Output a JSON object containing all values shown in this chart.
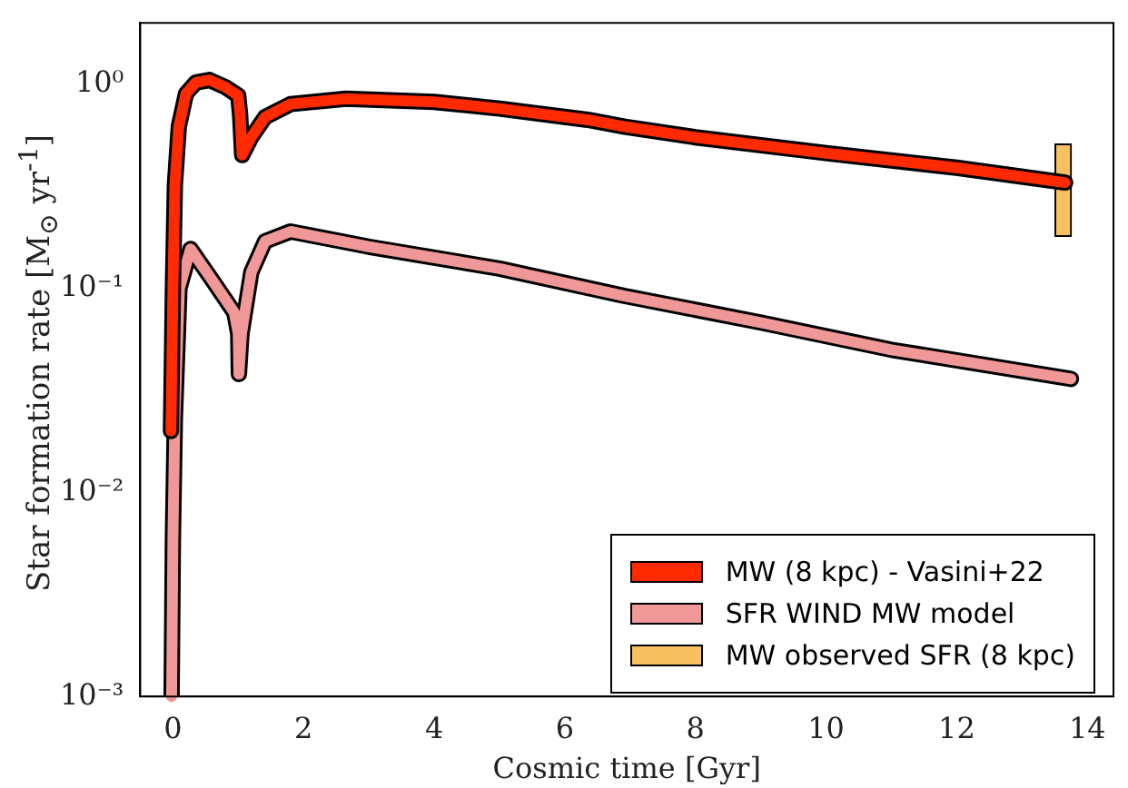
{
  "chart_data": {
    "type": "line",
    "xlabel": "Cosmic time [Gyr]",
    "ylabel": "Star formation rate [M$_{⊙}$ yr$^{-1}$]",
    "log": "y",
    "xlim": [
      -0.5,
      14.4
    ],
    "xticks": [
      0,
      2,
      4,
      6,
      8,
      10,
      12,
      14
    ],
    "ylim": [
      0.001,
      2
    ],
    "yticks": [
      {
        "value": 0.001,
        "label": "10⁻³"
      },
      {
        "value": 0.01,
        "label": "10⁻²"
      },
      {
        "value": 0.1,
        "label": "10⁻¹"
      },
      {
        "value": 1,
        "label": "10⁰"
      }
    ],
    "grid": false,
    "legend": "bottom right",
    "marker": "none",
    "line_style": "solid",
    "series": [
      {
        "name": "MW (8 kpc) - Vasini+22",
        "color": "#ff2a00",
        "x": [
          -0.03,
          0.0,
          0.03,
          0.09,
          0.2,
          0.35,
          0.56,
          0.8,
          1.0,
          1.03,
          1.06,
          1.2,
          1.41,
          1.8,
          2.65,
          4,
          5,
          6.35,
          6.92,
          8,
          10,
          12,
          13.66
        ],
        "values": [
          0.02,
          0.1,
          0.32,
          0.62,
          0.9,
          1.02,
          1.05,
          0.97,
          0.88,
          0.7,
          0.45,
          0.55,
          0.69,
          0.8,
          0.85,
          0.82,
          0.76,
          0.67,
          0.62,
          0.55,
          0.46,
          0.39,
          0.33
        ]
      },
      {
        "name": "SFR WIND MW model",
        "color": "#f09898",
        "x": [
          -0.02,
          0.0,
          0.03,
          0.1,
          0.27,
          0.6,
          0.94,
          1.0,
          1.01,
          1.05,
          1.2,
          1.41,
          1.8,
          3,
          5,
          6.9,
          9,
          11,
          13.75
        ],
        "values": [
          0.001,
          0.006,
          0.023,
          0.1,
          0.156,
          0.11,
          0.076,
          0.06,
          0.038,
          0.06,
          0.12,
          0.17,
          0.19,
          0.16,
          0.125,
          0.092,
          0.068,
          0.05,
          0.036
        ]
      },
      {
        "name": "MW observed SFR (8 kpc)",
        "type": "bar",
        "color": "#f8c060",
        "x": [
          13.63
        ],
        "base": [
          0.18
        ],
        "values": [
          0.33
        ]
      }
    ]
  }
}
